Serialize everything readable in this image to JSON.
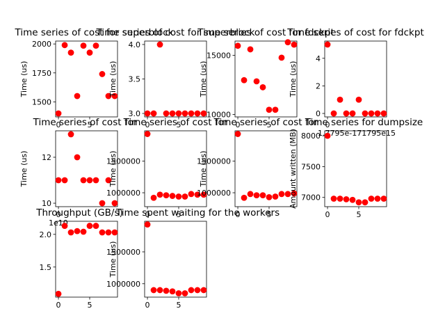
{
  "chart_data": [
    {
      "type": "scatter",
      "title": "Time series of cost for superblock",
      "ylabel": "Time (us)",
      "xlim": [
        -0.45,
        9.45
      ],
      "ylim": [
        1370,
        2025
      ],
      "xticks": [
        0,
        5
      ],
      "xtick_labels": [
        "0",
        "5"
      ],
      "yticks": [
        1500,
        1750,
        2000
      ],
      "ytick_labels": [
        "1500",
        "1750",
        "2000"
      ],
      "x": [
        0,
        1,
        2,
        3,
        4,
        5,
        6,
        7,
        8,
        9
      ],
      "y": [
        1400,
        1990,
        1925,
        1550,
        1985,
        1925,
        1985,
        1740,
        1550,
        1550
      ],
      "color": "#ff0000"
    },
    {
      "type": "scatter",
      "title": "Time series of cost for superblock",
      "ylabel": "Time (us)",
      "xlim": [
        -0.45,
        9.45
      ],
      "ylim": [
        2.95,
        4.05
      ],
      "xticks": [
        0,
        5
      ],
      "xtick_labels": [
        "0",
        "5"
      ],
      "yticks": [
        3.0,
        3.5,
        4.0
      ],
      "ytick_labels": [
        "3.0",
        "3.5",
        "4.0"
      ],
      "x": [
        0,
        1,
        2,
        3,
        4,
        5,
        6,
        7,
        8,
        9
      ],
      "y": [
        3,
        3,
        4,
        3,
        3,
        3,
        3,
        3,
        3,
        3
      ],
      "color": "#ff0000"
    },
    {
      "type": "scatter",
      "title": "Time series of cost for fdckpt",
      "ylabel": "Time (us)",
      "xlim": [
        -0.45,
        9.45
      ],
      "ylim": [
        9800,
        16200
      ],
      "xticks": [
        0,
        5
      ],
      "xtick_labels": [
        "0",
        "5"
      ],
      "yticks": [
        10000,
        15000
      ],
      "ytick_labels": [
        "10000",
        "15000"
      ],
      "x": [
        0,
        1,
        2,
        3,
        4,
        5,
        6,
        7,
        8,
        9
      ],
      "y": [
        15800,
        12900,
        15500,
        12800,
        12300,
        10400,
        10400,
        14800,
        16100,
        15900
      ],
      "color": "#ff0000"
    },
    {
      "type": "scatter",
      "title": "Time series of cost for fdckpt",
      "ylabel": "Time (us)",
      "xlim": [
        -0.45,
        9.45
      ],
      "ylim": [
        -0.25,
        5.25
      ],
      "xticks": [
        0
      ],
      "xtick_labels": [
        "0"
      ],
      "offset_label": "1.7795e-171795e15",
      "yticks": [
        0,
        2,
        4
      ],
      "ytick_labels": [
        "0",
        "2",
        "4"
      ],
      "x": [
        0,
        1,
        2,
        3,
        4,
        5,
        6,
        7,
        8,
        9
      ],
      "y": [
        5,
        0,
        1,
        0,
        0,
        1,
        0,
        0,
        0,
        0
      ],
      "color": "#ff0000"
    },
    {
      "type": "scatter",
      "title": "Time series of cost for",
      "ylabel": "Time (us)",
      "xlim": [
        -0.45,
        9.45
      ],
      "ylim": [
        9.85,
        13.15
      ],
      "xticks": [
        0
      ],
      "xtick_labels": [
        "0"
      ],
      "offset_label": "1e10",
      "yticks": [
        10,
        12
      ],
      "ytick_labels": [
        "10",
        "12"
      ],
      "x": [
        0,
        1,
        2,
        3,
        4,
        5,
        6,
        7,
        8,
        9
      ],
      "y": [
        11,
        11,
        13,
        12,
        11,
        11,
        11,
        10,
        11,
        10
      ],
      "color": "#ff0000"
    },
    {
      "type": "scatter",
      "title": "Time series of cost for",
      "ylabel": "Time (us)",
      "xlim": [
        -0.45,
        9.45
      ],
      "ylim": [
        780000,
        1980000
      ],
      "xticks": [
        0,
        5
      ],
      "xtick_labels": [
        "0",
        "5"
      ],
      "yticks": [
        1000000,
        1500000
      ],
      "ytick_labels": [
        "1000000",
        "1500000"
      ],
      "x": [
        0,
        1,
        2,
        3,
        4,
        5,
        6,
        7,
        8,
        9
      ],
      "y": [
        1930000,
        920000,
        970000,
        960000,
        950000,
        940000,
        940000,
        980000,
        970000,
        970000
      ],
      "color": "#ff0000"
    },
    {
      "type": "scatter",
      "title": "Time series of cost for",
      "ylabel": "Time (us)",
      "xlim": [
        -0.45,
        9.45
      ],
      "ylim": [
        780000,
        1980000
      ],
      "xticks": [
        0,
        5
      ],
      "xtick_labels": [
        "0",
        "5"
      ],
      "yticks": [
        1000000,
        1500000
      ],
      "ytick_labels": [
        "1000000",
        "1500000"
      ],
      "x": [
        0,
        1,
        2,
        3,
        4,
        5,
        6,
        7,
        8,
        9
      ],
      "y": [
        1930000,
        920000,
        980000,
        960000,
        960000,
        930000,
        940000,
        980000,
        980000,
        990000
      ],
      "color": "#ff0000"
    },
    {
      "type": "scatter",
      "title": "Time series for dumpsize",
      "ylabel": "Amount written (MB)",
      "xlim": [
        -0.45,
        9.45
      ],
      "ylim": [
        6850,
        8080
      ],
      "xticks": [
        0,
        5
      ],
      "xtick_labels": [
        "0",
        "5"
      ],
      "yticks": [
        7000,
        7500,
        8000
      ],
      "ytick_labels": [
        "7000",
        "7500",
        "8000"
      ],
      "x": [
        0,
        1,
        2,
        3,
        4,
        5,
        6,
        7,
        8,
        9
      ],
      "y": [
        8000,
        6980,
        6980,
        6970,
        6960,
        6920,
        6920,
        6980,
        6980,
        6980
      ],
      "color": "#ff0000"
    },
    {
      "type": "scatter",
      "title": "Throughput (GB/s)",
      "ylabel": "",
      "xlim": [
        -0.45,
        9.45
      ],
      "ylim": [
        1.04,
        2.2
      ],
      "xticks": [
        0,
        5
      ],
      "xtick_labels": [
        "0",
        "5"
      ],
      "yticks": [
        1.5,
        2.0
      ],
      "ytick_labels": [
        "1.5",
        "2.0"
      ],
      "x": [
        0,
        1,
        2,
        3,
        4,
        5,
        6,
        7,
        8,
        9
      ],
      "y": [
        1.09,
        2.13,
        2.03,
        2.05,
        2.04,
        2.13,
        2.13,
        2.03,
        2.03,
        2.03
      ],
      "color": "#ff0000"
    },
    {
      "type": "scatter",
      "title": "Time spent waiting for the workers",
      "ylabel": "Time (us)",
      "xlim": [
        -0.45,
        9.45
      ],
      "ylim": [
        790000,
        1980000
      ],
      "xticks": [
        0,
        5
      ],
      "xtick_labels": [
        "0",
        "5"
      ],
      "yticks": [
        1000000,
        1500000
      ],
      "ytick_labels": [
        "1000000",
        "1500000"
      ],
      "x": [
        0,
        1,
        2,
        3,
        4,
        5,
        6,
        7,
        8,
        9
      ],
      "y": [
        1930000,
        900000,
        900000,
        890000,
        880000,
        850000,
        850000,
        900000,
        900000,
        900000
      ],
      "color": "#ff0000"
    }
  ]
}
